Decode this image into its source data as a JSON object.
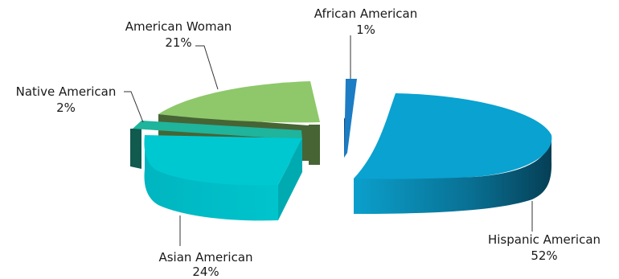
{
  "chart_data": {
    "type": "pie",
    "variant": "3d-exploded",
    "legend": "none",
    "slices": [
      {
        "name": "Hispanic American",
        "value": 52,
        "label": "52%",
        "color": "#0aa2d0"
      },
      {
        "name": "African American",
        "value": 1,
        "label": "1%",
        "color": "#1c7cc4"
      },
      {
        "name": "American Woman",
        "value": 21,
        "label": "21%",
        "color": "#8ec86a"
      },
      {
        "name": "Native American",
        "value": 2,
        "label": "2%",
        "color": "#1fb49c"
      },
      {
        "name": "Asian American",
        "value": 24,
        "label": "24%",
        "color": "#00c8d0"
      }
    ]
  }
}
